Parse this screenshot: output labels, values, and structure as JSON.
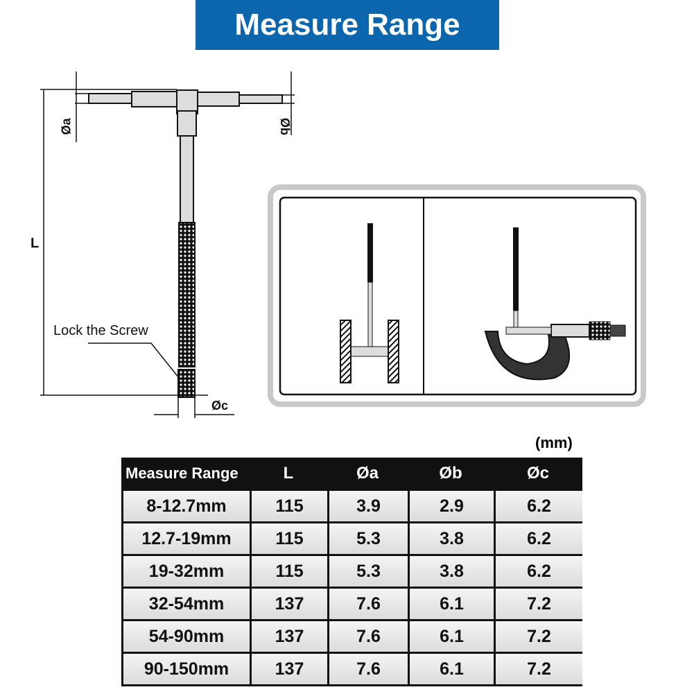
{
  "title": "Measure Range",
  "diagram": {
    "labels": {
      "L": "L",
      "a": "Øa",
      "b": "Øb",
      "c": "Øc",
      "lock": "Lock the Screw"
    }
  },
  "unit": "(mm)",
  "table": {
    "headers": [
      "Measure Range",
      "L",
      "Øa",
      "Øb",
      "Øc"
    ],
    "rows": [
      [
        "8-12.7mm",
        "115",
        "3.9",
        "2.9",
        "6.2"
      ],
      [
        "12.7-19mm",
        "115",
        "5.3",
        "3.8",
        "6.2"
      ],
      [
        "19-32mm",
        "115",
        "5.3",
        "3.8",
        "6.2"
      ],
      [
        "32-54mm",
        "137",
        "7.6",
        "6.1",
        "7.2"
      ],
      [
        "54-90mm",
        "137",
        "7.6",
        "6.1",
        "7.2"
      ],
      [
        "90-150mm",
        "137",
        "7.6",
        "6.1",
        "7.2"
      ]
    ]
  },
  "colors": {
    "banner": "#0b66ad",
    "table_header": "#111111"
  }
}
